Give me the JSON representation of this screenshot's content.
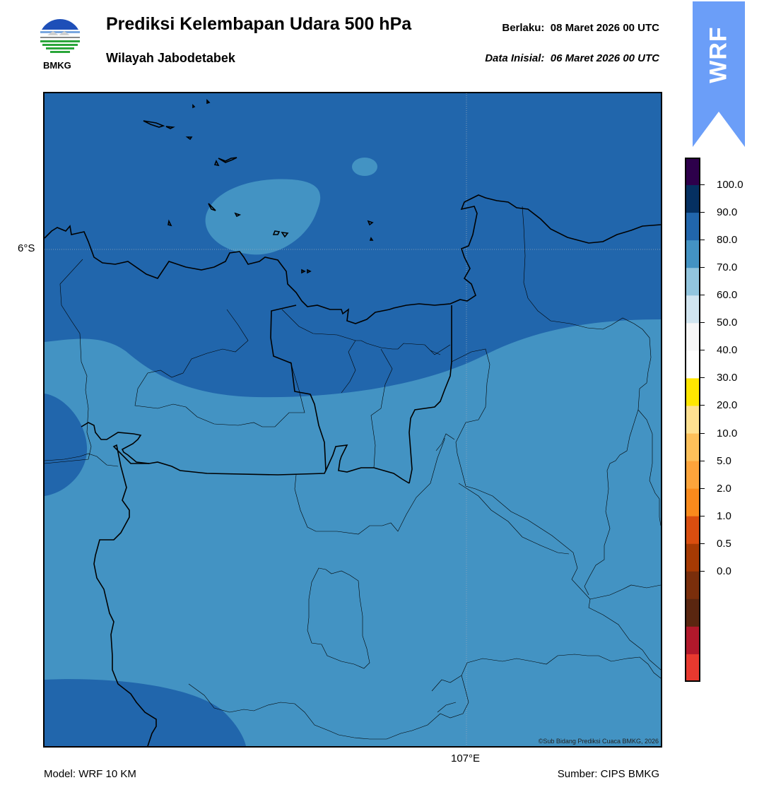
{
  "header": {
    "title": "Prediksi Kelembapan Udara 500 hPa",
    "region": "Wilayah Jabodetabek",
    "valid_label": "Berlaku:",
    "valid_time": "08 Maret 2026 00 UTC",
    "init_label": "Data Inisial:",
    "init_time": "06 Maret 2026 00 UTC"
  },
  "logo": {
    "text": "BMKG",
    "icon": "bmkg-logo-icon"
  },
  "banner": {
    "text": "WRF",
    "color": "#6b9ef8"
  },
  "map": {
    "lat_label": "6°S",
    "lon_label": "107°E",
    "credit": "©Sub Bidang Prediksi Cuaca BMKG, 2026",
    "colors": {
      "band_80_90": "#2166ac",
      "band_70_80": "#4393c3",
      "band_60_70": "#92c5de"
    }
  },
  "colorbar": {
    "labels": [
      "100.0",
      "90.0",
      "80.0",
      "70.0",
      "60.0",
      "50.0",
      "40.0",
      "30.0",
      "20.0",
      "10.0",
      "5.0",
      "2.0",
      "1.0",
      "0.5",
      "0.0"
    ],
    "colors_top_to_bottom": [
      "#2d004b",
      "#053061",
      "#2166ac",
      "#4393c3",
      "#92c5de",
      "#d1e5f0",
      "#f7f7f7",
      "#ffffff",
      "#ffe600",
      "#fee090",
      "#fdc05a",
      "#fda43b",
      "#f98a1c",
      "#d94e0f",
      "#a63a03",
      "#7a2e0b",
      "#5a2610",
      "#b2182b",
      "#e8392f"
    ]
  },
  "footer": {
    "model": "Model: WRF 10 KM",
    "source": "Sumber: CIPS BMKG"
  }
}
